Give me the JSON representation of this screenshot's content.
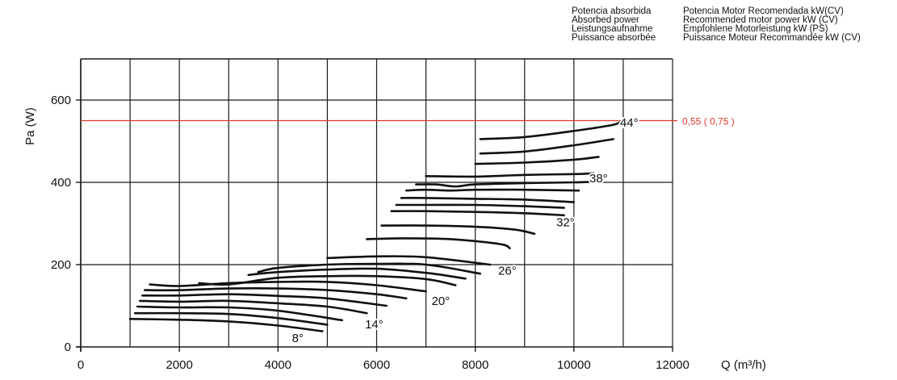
{
  "legend": {
    "absorbed_power": [
      "Potencia absorbida",
      "Absorbed power",
      "Leistungsaufnahme",
      "Puissance absorbée"
    ],
    "recommended_motor": [
      "Potencia Motor Recomendada kW(CV)",
      "Recommended motor power kW (CV)",
      "Empfohlene Motorleistung kW (PS)",
      "Puissance Moteur Recommandée kW (CV)"
    ]
  },
  "colors": {
    "grid": "#1a1a1a",
    "curve": "#111111",
    "limit_line": "#e0392f",
    "limit_text": "#e0392f"
  },
  "chart_data": {
    "type": "line",
    "xlabel": "Q (m³/h)",
    "ylabel": "Pa (W)",
    "xlim": [
      0,
      12000
    ],
    "ylim": [
      0,
      700
    ],
    "x_ticks": [
      0,
      2000,
      4000,
      6000,
      8000,
      10000,
      12000
    ],
    "y_ticks": [
      0,
      200,
      400,
      600
    ],
    "x_gridlines": [
      0,
      1000,
      2000,
      3000,
      4000,
      5000,
      6000,
      7000,
      8000,
      9000,
      10000,
      11000,
      12000
    ],
    "grid": true,
    "reference_line": {
      "y": 550,
      "label": "0,55 ( 0,75 )"
    },
    "series": [
      {
        "x": [
          1000,
          2000,
          3000,
          4000,
          4900
        ],
        "y": [
          68,
          66,
          62,
          52,
          38
        ]
      },
      {
        "x": [
          1100,
          2000,
          3000,
          4000,
          5000
        ],
        "y": [
          82,
          82,
          80,
          70,
          54
        ]
      },
      {
        "x": [
          1150,
          2000,
          3000,
          4000,
          5300
        ],
        "y": [
          98,
          96,
          96,
          88,
          65
        ]
      },
      {
        "x": [
          1200,
          2000,
          3000,
          4000,
          5000,
          5800
        ],
        "y": [
          112,
          110,
          112,
          106,
          98,
          82
        ]
      },
      {
        "x": [
          1250,
          2000,
          3000,
          4000,
          5000,
          6200
        ],
        "y": [
          125,
          125,
          128,
          124,
          118,
          100
        ]
      },
      {
        "x": [
          1300,
          2000,
          3000,
          4000,
          5000,
          6000,
          6600
        ],
        "y": [
          138,
          138,
          142,
          142,
          138,
          128,
          118
        ]
      },
      {
        "x": [
          1400,
          2000,
          3000,
          4000,
          5000,
          6000,
          7000
        ],
        "y": [
          152,
          148,
          155,
          158,
          158,
          150,
          135
        ]
      },
      {
        "x": [
          2400,
          3000,
          4000,
          5000,
          6000,
          7000,
          7600
        ],
        "y": [
          155,
          152,
          168,
          172,
          172,
          165,
          150
        ]
      },
      {
        "x": [
          3400,
          4000,
          5000,
          6000,
          7000,
          7800
        ],
        "y": [
          175,
          182,
          188,
          190,
          180,
          166
        ]
      },
      {
        "x": [
          3600,
          4000,
          5000,
          6000,
          7000,
          8100
        ],
        "y": [
          182,
          192,
          200,
          202,
          200,
          178
        ]
      },
      {
        "x": [
          5000,
          6000,
          7000,
          8300
        ],
        "y": [
          216,
          220,
          218,
          200
        ]
      },
      {
        "x": [
          5800,
          6500,
          7500,
          8500,
          8700
        ],
        "y": [
          262,
          264,
          262,
          250,
          240
        ]
      },
      {
        "x": [
          6100,
          7000,
          8000,
          8800,
          9200
        ],
        "y": [
          295,
          295,
          292,
          285,
          275
        ]
      },
      {
        "x": [
          6300,
          7000,
          8000,
          9000,
          9800
        ],
        "y": [
          330,
          330,
          328,
          325,
          320
        ]
      },
      {
        "x": [
          6400,
          7000,
          8000,
          9000,
          9800
        ],
        "y": [
          345,
          345,
          345,
          342,
          338
        ]
      },
      {
        "x": [
          6500,
          7000,
          8000,
          9000,
          10000
        ],
        "y": [
          362,
          362,
          360,
          358,
          352
        ]
      },
      {
        "x": [
          6600,
          7000,
          7500,
          8000,
          9000,
          10100
        ],
        "y": [
          380,
          382,
          380,
          382,
          382,
          380
        ]
      },
      {
        "x": [
          6800,
          7200,
          7600,
          8000,
          9000,
          10000,
          10500
        ],
        "y": [
          395,
          395,
          390,
          395,
          398,
          400,
          402
        ]
      },
      {
        "x": [
          7000,
          8000,
          9000,
          10000,
          10400
        ],
        "y": [
          415,
          414,
          418,
          420,
          422
        ]
      },
      {
        "x": [
          8000,
          9000,
          10000,
          10500
        ],
        "y": [
          445,
          448,
          455,
          462
        ]
      },
      {
        "x": [
          8100,
          9000,
          10000,
          10800
        ],
        "y": [
          470,
          475,
          490,
          505
        ]
      },
      {
        "x": [
          8100,
          9000,
          10000,
          10800,
          11000
        ],
        "y": [
          505,
          510,
          525,
          540,
          552
        ]
      }
    ],
    "annotations": [
      {
        "text": "8°",
        "x": 4400,
        "y": 22
      },
      {
        "text": "14°",
        "x": 5950,
        "y": 55
      },
      {
        "text": "20°",
        "x": 7300,
        "y": 112
      },
      {
        "text": "26°",
        "x": 8650,
        "y": 185
      },
      {
        "text": "32°",
        "x": 9830,
        "y": 303
      },
      {
        "text": "38°",
        "x": 10500,
        "y": 410
      },
      {
        "text": "44°",
        "x": 11120,
        "y": 545
      }
    ]
  }
}
